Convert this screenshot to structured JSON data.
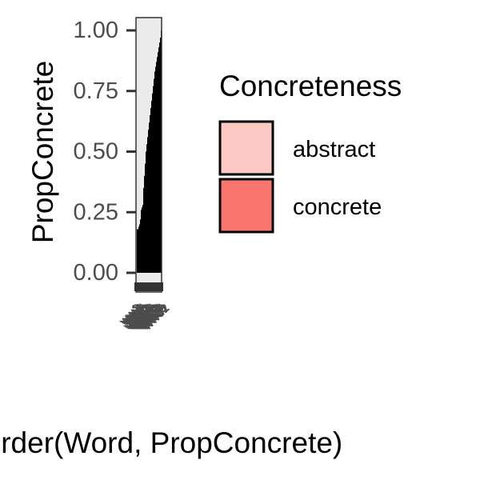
{
  "chart_data": {
    "type": "bar",
    "subtype": "stacked-proportion",
    "xlabel": "reorder(Word, PropConcrete)",
    "ylabel": "PropConcrete",
    "ylim": [
      0,
      1
    ],
    "y_ticks": [
      "0.00",
      "0.25",
      "0.50",
      "0.75",
      "1.00"
    ],
    "y_tick_values": [
      0,
      0.25,
      0.5,
      0.75,
      1.0
    ],
    "x_tick_labels_legible": false,
    "categories": [
      "w1",
      "w2",
      "w3",
      "w4",
      "w5",
      "w6",
      "w7",
      "w8",
      "w9",
      "w10",
      "w11",
      "w12",
      "w13",
      "w14",
      "w15",
      "w16",
      "w17",
      "w18",
      "w19",
      "w20",
      "w21",
      "w22",
      "w23",
      "w24",
      "w25",
      "w26",
      "w27",
      "w28",
      "w29",
      "w30",
      "w31",
      "w32"
    ],
    "series": [
      {
        "name": "concrete",
        "color": "#000000",
        "values": [
          0.0,
          0.18,
          0.18,
          0.19,
          0.2,
          0.22,
          0.26,
          0.27,
          0.28,
          0.35,
          0.4,
          0.45,
          0.5,
          0.53,
          0.56,
          0.59,
          0.62,
          0.65,
          0.68,
          0.71,
          0.74,
          0.77,
          0.8,
          0.83,
          0.85,
          0.87,
          0.89,
          0.91,
          0.93,
          0.95,
          0.97,
          1.0
        ]
      }
    ],
    "background_color": "#ebebeb",
    "legend": {
      "title": "Concreteness",
      "position": "right",
      "items": [
        {
          "label": "abstract",
          "color": "#fbc8c4"
        },
        {
          "label": "concrete",
          "color": "#f8766d"
        }
      ]
    },
    "grid": false
  }
}
